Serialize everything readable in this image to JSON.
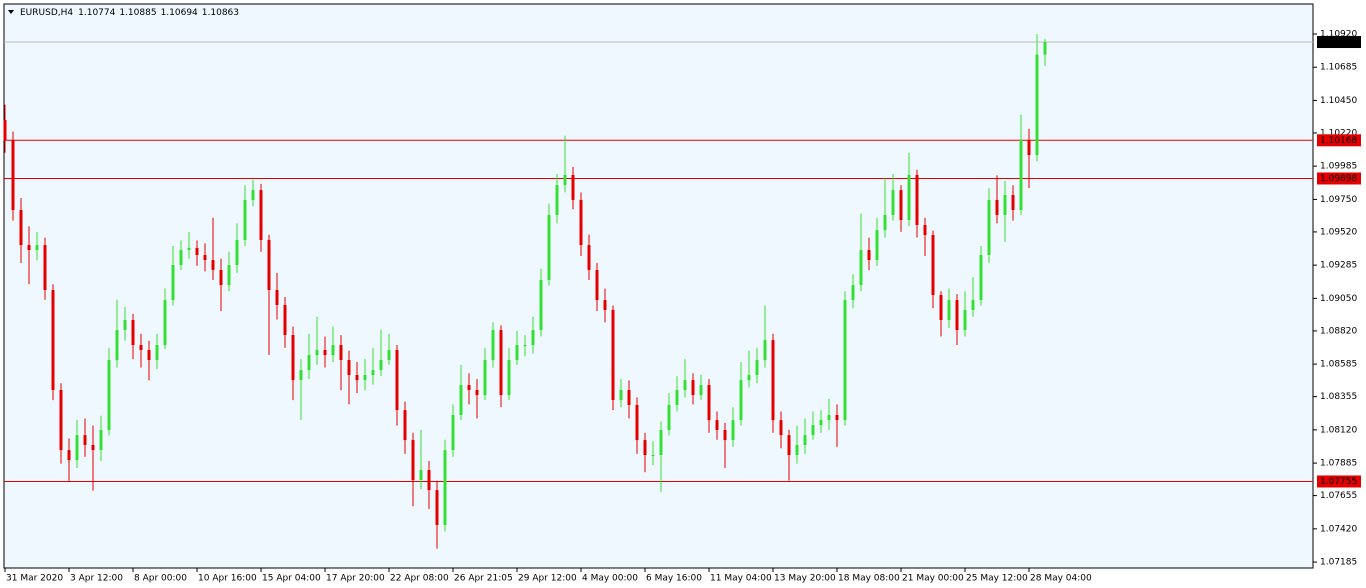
{
  "chart_data": {
    "type": "candlestick",
    "title": "EURUSD,H4",
    "up_color": "#33e133",
    "down_color": "#e50000",
    "level_color": "#e50000",
    "price_line_color": "#bdbdbd",
    "background": "#f0f8ff",
    "ylim": [
      1.07143,
      1.11132
    ],
    "yticks": [
      {
        "value": 1.1092,
        "label": "1.10920"
      },
      1.10685,
      {
        "value": 1.1045,
        "label": "1.10450"
      },
      {
        "value": 1.1022,
        "label": "1.10220"
      },
      1.09985,
      {
        "value": 1.0975,
        "label": "1.09750"
      },
      {
        "value": 1.0952,
        "label": "1.09520"
      },
      1.09285,
      {
        "value": 1.0905,
        "label": "1.09050"
      },
      {
        "value": 1.0882,
        "label": "1.08820"
      },
      1.08585,
      1.08355,
      {
        "value": 1.0812,
        "label": "1.08120"
      },
      1.07885,
      1.07655,
      {
        "value": 1.0742,
        "label": "1.07420"
      },
      1.07185
    ],
    "levels": [
      1.10168,
      1.09898,
      1.07755
    ],
    "categories": [
      "31 Mar 2020",
      null,
      null,
      null,
      null,
      null,
      null,
      null,
      "3 Apr 12:00",
      null,
      null,
      null,
      null,
      null,
      null,
      null,
      "8 Apr 00:00",
      null,
      null,
      null,
      null,
      null,
      null,
      null,
      "10 Apr 16:00",
      null,
      null,
      null,
      null,
      null,
      null,
      null,
      "15 Apr 04:00",
      null,
      null,
      null,
      null,
      null,
      null,
      null,
      "17 Apr 20:00",
      null,
      null,
      null,
      null,
      null,
      null,
      null,
      "22 Apr 08:00",
      null,
      null,
      null,
      null,
      null,
      null,
      null,
      "26 Apr 21:05",
      null,
      null,
      null,
      null,
      null,
      null,
      null,
      "29 Apr 12:00",
      null,
      null,
      null,
      null,
      null,
      null,
      null,
      "4 May 00:00",
      null,
      null,
      null,
      null,
      null,
      null,
      null,
      "6 May 16:00",
      null,
      null,
      null,
      null,
      null,
      null,
      null,
      "11 May 04:00",
      null,
      null,
      null,
      null,
      null,
      null,
      null,
      "13 May 20:00",
      null,
      null,
      null,
      null,
      null,
      null,
      null,
      "18 May 08:00",
      null,
      null,
      null,
      null,
      null,
      null,
      null,
      "21 May 00:00",
      null,
      null,
      null,
      null,
      null,
      null,
      null,
      "25 May 12:00",
      null,
      null,
      null,
      null,
      null,
      null,
      null,
      "28 May 04:00",
      null,
      null
    ],
    "candles": [
      [
        1.10312,
        1.1042,
        1.1008,
        1.1017
      ],
      [
        1.1017,
        1.1023,
        1.096,
        1.09675
      ],
      [
        1.09675,
        1.0976,
        1.093,
        1.09427
      ],
      [
        1.09427,
        1.0956,
        1.0915,
        1.09392
      ],
      [
        1.09392,
        1.0952,
        1.0932,
        1.09427
      ],
      [
        1.09427,
        1.0948,
        1.0904,
        1.09109
      ],
      [
        1.09109,
        1.0915,
        1.0833,
        1.08402
      ],
      [
        1.08402,
        1.0845,
        1.0788,
        1.07977
      ],
      [
        1.07977,
        1.0806,
        1.07755,
        1.07906
      ],
      [
        1.07906,
        1.0819,
        1.0785,
        1.08083
      ],
      [
        1.08083,
        1.082,
        1.0793,
        1.08013
      ],
      [
        1.08013,
        1.0815,
        1.0769,
        1.07977
      ],
      [
        1.07977,
        1.0822,
        1.079,
        1.08119
      ],
      [
        1.08119,
        1.087,
        1.0808,
        1.08614
      ],
      [
        1.08614,
        1.0904,
        1.0856,
        1.08826
      ],
      [
        1.08826,
        1.0899,
        1.0875,
        1.08897
      ],
      [
        1.08897,
        1.0894,
        1.0862,
        1.0872
      ],
      [
        1.0872,
        1.088,
        1.0856,
        1.08685
      ],
      [
        1.08685,
        1.0875,
        1.0847,
        1.08614
      ],
      [
        1.08614,
        1.088,
        1.0855,
        1.0872
      ],
      [
        1.0872,
        1.0912,
        1.0869,
        1.09038
      ],
      [
        1.09038,
        1.0942,
        1.09,
        1.09286
      ],
      [
        1.09286,
        1.0946,
        1.0925,
        1.09392
      ],
      [
        1.09392,
        1.0952,
        1.0933,
        1.09406
      ],
      [
        1.09406,
        1.0946,
        1.0928,
        1.09357
      ],
      [
        1.09357,
        1.0944,
        1.0924,
        1.09321
      ],
      [
        1.09321,
        1.0962,
        1.0918,
        1.09251
      ],
      [
        1.09251,
        1.0933,
        1.0896,
        1.09144
      ],
      [
        1.09144,
        1.0938,
        1.091,
        1.09286
      ],
      [
        1.09286,
        1.0958,
        1.0923,
        1.09463
      ],
      [
        1.09463,
        1.0985,
        1.0942,
        1.09746
      ],
      [
        1.09746,
        1.0989,
        1.097,
        1.09816
      ],
      [
        1.09816,
        1.0986,
        1.0938,
        1.09463
      ],
      [
        1.09463,
        1.095,
        1.0865,
        1.09109
      ],
      [
        1.09109,
        1.0923,
        1.089,
        1.09003
      ],
      [
        1.09003,
        1.0906,
        1.087,
        1.08791
      ],
      [
        1.08791,
        1.0885,
        1.0833,
        1.08472
      ],
      [
        1.08472,
        1.0862,
        1.0819,
        1.08543
      ],
      [
        1.08543,
        1.088,
        1.0848,
        1.08649
      ],
      [
        1.08649,
        1.0892,
        1.0858,
        1.08685
      ],
      [
        1.08685,
        1.0878,
        1.0856,
        1.08649
      ],
      [
        1.08649,
        1.0885,
        1.086,
        1.0872
      ],
      [
        1.0872,
        1.0879,
        1.084,
        1.08614
      ],
      [
        1.08614,
        1.0868,
        1.083,
        1.08508
      ],
      [
        1.08508,
        1.086,
        1.0838,
        1.08472
      ],
      [
        1.08472,
        1.0862,
        1.084,
        1.08508
      ],
      [
        1.08508,
        1.087,
        1.0844,
        1.08543
      ],
      [
        1.08543,
        1.0883,
        1.085,
        1.08614
      ],
      [
        1.08614,
        1.088,
        1.0858,
        1.08685
      ],
      [
        1.08685,
        1.0872,
        1.0815,
        1.0826
      ],
      [
        1.0826,
        1.0832,
        1.0795,
        1.08048
      ],
      [
        1.08048,
        1.081,
        1.0758,
        1.07765
      ],
      [
        1.07765,
        1.0812,
        1.077,
        1.07836
      ],
      [
        1.07836,
        1.079,
        1.0756,
        1.07694
      ],
      [
        1.07694,
        1.0776,
        1.0728,
        1.07447
      ],
      [
        1.07447,
        1.0805,
        1.074,
        1.07977
      ],
      [
        1.07977,
        1.083,
        1.0793,
        1.08225
      ],
      [
        1.08225,
        1.0858,
        1.0819,
        1.08437
      ],
      [
        1.08437,
        1.0852,
        1.083,
        1.08402
      ],
      [
        1.08402,
        1.0848,
        1.082,
        1.08366
      ],
      [
        1.08366,
        1.087,
        1.0833,
        1.08614
      ],
      [
        1.08614,
        1.0888,
        1.0856,
        1.08826
      ],
      [
        1.08826,
        1.0886,
        1.0828,
        1.08366
      ],
      [
        1.08366,
        1.087,
        1.0833,
        1.08614
      ],
      [
        1.08614,
        1.0882,
        1.0858,
        1.0872
      ],
      [
        1.0872,
        1.0879,
        1.0864,
        1.0872
      ],
      [
        1.0872,
        1.0892,
        1.0866,
        1.08826
      ],
      [
        1.08826,
        1.0926,
        1.0878,
        1.0918
      ],
      [
        1.0918,
        1.0972,
        1.0914,
        1.0964
      ],
      [
        1.0964,
        1.0993,
        1.0958,
        1.09852
      ],
      [
        1.09852,
        1.102,
        1.098,
        1.09923
      ],
      [
        1.09923,
        1.0998,
        1.0968,
        1.09746
      ],
      [
        1.09746,
        1.098,
        1.0935,
        1.09427
      ],
      [
        1.09427,
        1.095,
        1.0918,
        1.09251
      ],
      [
        1.09251,
        1.093,
        1.0896,
        1.09038
      ],
      [
        1.09038,
        1.0912,
        1.0888,
        1.08968
      ],
      [
        1.08968,
        1.09,
        1.0826,
        1.08331
      ],
      [
        1.08331,
        1.0848,
        1.0828,
        1.08402
      ],
      [
        1.08402,
        1.0847,
        1.082,
        1.08296
      ],
      [
        1.08296,
        1.0835,
        1.0795,
        1.08048
      ],
      [
        1.08048,
        1.081,
        1.0782,
        1.07942
      ],
      [
        1.07942,
        1.0804,
        1.0787,
        1.07942
      ],
      [
        1.07942,
        1.0818,
        1.0768,
        1.08119
      ],
      [
        1.08119,
        1.0838,
        1.0808,
        1.08296
      ],
      [
        1.08296,
        1.085,
        1.0825,
        1.08402
      ],
      [
        1.08402,
        1.0862,
        1.0835,
        1.08472
      ],
      [
        1.08472,
        1.0852,
        1.083,
        1.08366
      ],
      [
        1.08366,
        1.0851,
        1.0833,
        1.08437
      ],
      [
        1.08437,
        1.0848,
        1.081,
        1.08189
      ],
      [
        1.08189,
        1.0825,
        1.0805,
        1.08119
      ],
      [
        1.08119,
        1.0817,
        1.0785,
        1.08048
      ],
      [
        1.08048,
        1.0828,
        1.08,
        1.08189
      ],
      [
        1.08189,
        1.086,
        1.0815,
        1.08472
      ],
      [
        1.08472,
        1.0868,
        1.0842,
        1.08508
      ],
      [
        1.08508,
        1.087,
        1.0845,
        1.08614
      ],
      [
        1.08614,
        1.09,
        1.0856,
        1.08755
      ],
      [
        1.08755,
        1.088,
        1.081,
        1.08189
      ],
      [
        1.08189,
        1.0825,
        1.0799,
        1.08083
      ],
      [
        1.08083,
        1.0812,
        1.0776,
        1.07942
      ],
      [
        1.07942,
        1.0815,
        1.0788,
        1.08013
      ],
      [
        1.08013,
        1.082,
        1.0795,
        1.08083
      ],
      [
        1.08083,
        1.0825,
        1.0805,
        1.08154
      ],
      [
        1.08154,
        1.0826,
        1.081,
        1.08189
      ],
      [
        1.08189,
        1.0834,
        1.0812,
        1.08225
      ],
      [
        1.08225,
        1.083,
        1.08,
        1.08189
      ],
      [
        1.08189,
        1.091,
        1.0815,
        1.09038
      ],
      [
        1.09038,
        1.0922,
        1.0898,
        1.09144
      ],
      [
        1.09144,
        1.0965,
        1.091,
        1.09392
      ],
      [
        1.09392,
        1.0948,
        1.0925,
        1.09321
      ],
      [
        1.09321,
        1.0962,
        1.0928,
        1.09533
      ],
      [
        1.09533,
        1.099,
        1.0948,
        1.0964
      ],
      [
        1.0964,
        1.0993,
        1.096,
        1.09816
      ],
      [
        1.09816,
        1.0985,
        1.0952,
        1.09604
      ],
      [
        1.09604,
        1.1008,
        1.0956,
        1.09923
      ],
      [
        1.09923,
        1.0996,
        1.0948,
        1.09569
      ],
      [
        1.09569,
        1.0962,
        1.0935,
        1.09498
      ],
      [
        1.09498,
        1.0953,
        1.0898,
        1.09074
      ],
      [
        1.09074,
        1.091,
        1.0878,
        1.08897
      ],
      [
        1.08897,
        1.0912,
        1.0884,
        1.09038
      ],
      [
        1.09038,
        1.0908,
        1.0872,
        1.08826
      ],
      [
        1.08826,
        1.091,
        1.0878,
        1.08968
      ],
      [
        1.08968,
        1.092,
        1.0892,
        1.09038
      ],
      [
        1.09038,
        1.0942,
        1.09,
        1.09357
      ],
      [
        1.09357,
        1.0983,
        1.093,
        1.09746
      ],
      [
        1.09746,
        1.0992,
        1.0958,
        1.0964
      ],
      [
        1.0964,
        1.0988,
        1.0945,
        1.09781
      ],
      [
        1.09781,
        1.0985,
        1.096,
        1.09675
      ],
      [
        1.09675,
        1.1035,
        1.0964,
        1.1017
      ],
      [
        1.1017,
        1.1025,
        1.0983,
        1.10064
      ],
      [
        1.10064,
        1.1092,
        1.1002,
        1.10774
      ],
      [
        1.10774,
        1.10885,
        1.10694,
        1.10863
      ]
    ]
  }
}
